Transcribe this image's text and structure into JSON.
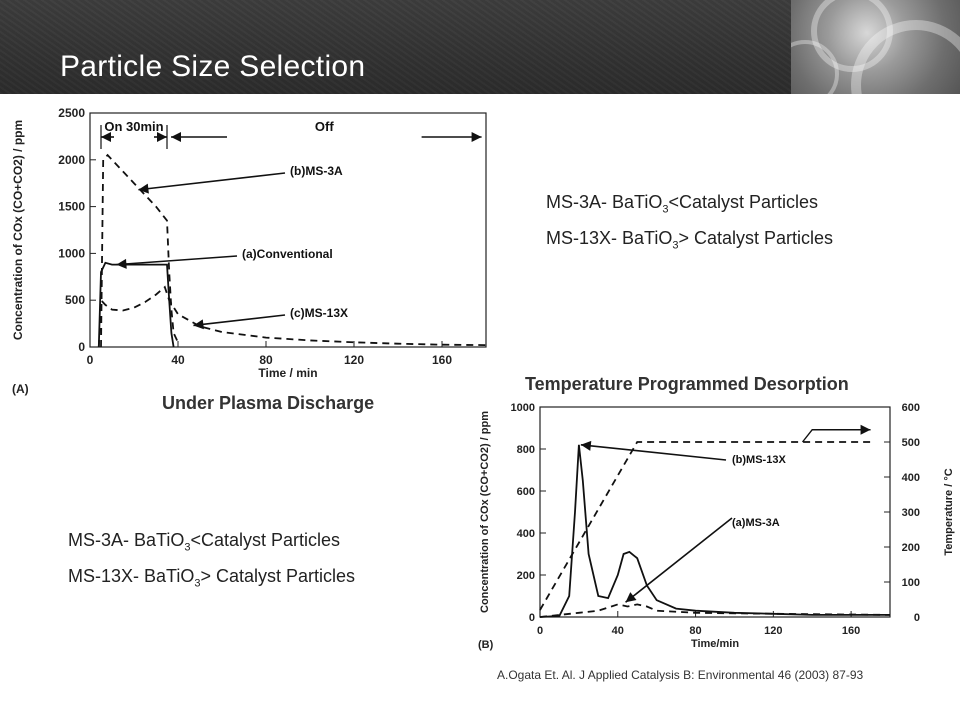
{
  "slide": {
    "title": "Particle Size Selection",
    "caption_left": "Under Plasma Discharge",
    "caption_right": "Temperature Programmed Desorption",
    "notes_top": [
      "MS-3A- BaTiO",
      "3",
      "<Catalyst Particles",
      "MS-13X- BaTiO",
      "3",
      "> Catalyst Particles"
    ],
    "notes_bottom": [
      "MS-3A- BaTiO",
      "3",
      "<Catalyst Particles",
      "MS-13X- BaTiO",
      "3",
      "> Catalyst Particles"
    ],
    "citation": "A.Ogata Et. Al. J Applied Catalysis B: Environmental 46 (2003) 87-93"
  },
  "chart_data": [
    {
      "type": "line",
      "panel_label": "(A)",
      "xlabel": "Time / min",
      "ylabel": "Concentration of COx (CO+CO2) / ppm",
      "xlim": [
        0,
        180
      ],
      "ylim": [
        0,
        2500
      ],
      "x_ticks": [
        "0",
        "40",
        "80",
        "120",
        "160"
      ],
      "y_ticks": [
        "0",
        "500",
        "1000",
        "1500",
        "2000",
        "2500"
      ],
      "annotations": [
        "On 30min",
        "Off",
        "(b)MS-3A",
        "(a)Conventional",
        "(c)MS-13X"
      ],
      "series": [
        {
          "name": "(b)MS-3A",
          "style": "dashed",
          "x": [
            5,
            6,
            8,
            12,
            20,
            30,
            35,
            36,
            37,
            38,
            40
          ],
          "y": [
            0,
            2000,
            2050,
            1950,
            1750,
            1500,
            1350,
            800,
            400,
            150,
            50
          ]
        },
        {
          "name": "(a)Conventional",
          "style": "solid",
          "x": [
            4,
            5,
            7,
            10,
            20,
            30,
            35,
            36,
            37,
            38
          ],
          "y": [
            0,
            800,
            900,
            880,
            880,
            880,
            880,
            500,
            150,
            0
          ]
        },
        {
          "name": "(c)MS-13X",
          "style": "dashed",
          "x": [
            4,
            5,
            7,
            10,
            15,
            20,
            25,
            30,
            34,
            36,
            40,
            50,
            60,
            80,
            100,
            120,
            140,
            160,
            180
          ],
          "y": [
            0,
            500,
            450,
            400,
            390,
            420,
            480,
            560,
            640,
            500,
            350,
            220,
            160,
            100,
            70,
            50,
            35,
            25,
            20
          ]
        }
      ]
    },
    {
      "type": "line",
      "panel_label": "(B)",
      "xlabel": "Time/min",
      "ylabel": "Concentration of COx (CO+CO2) / ppm",
      "y2label": "Temperature / °C",
      "xlim": [
        0,
        180
      ],
      "ylim": [
        0,
        1000
      ],
      "y2lim": [
        0,
        600
      ],
      "x_ticks": [
        "0",
        "40",
        "80",
        "120",
        "160"
      ],
      "y_ticks": [
        "0",
        "200",
        "400",
        "600",
        "800",
        "1000"
      ],
      "y2_ticks": [
        "0",
        "100",
        "200",
        "300",
        "400",
        "500",
        "600"
      ],
      "annotations": [
        "(b)MS-13X",
        "(a)MS-3A"
      ],
      "series": [
        {
          "name": "(b)MS-13X",
          "style": "solid",
          "x": [
            0,
            10,
            15,
            18,
            20,
            22,
            25,
            30,
            35,
            40,
            43,
            46,
            50,
            55,
            60,
            70,
            80,
            100,
            120,
            140,
            160,
            180
          ],
          "y": [
            0,
            5,
            100,
            500,
            820,
            650,
            300,
            100,
            90,
            200,
            300,
            310,
            280,
            150,
            80,
            40,
            30,
            20,
            15,
            10,
            10,
            10
          ]
        },
        {
          "name": "(a)MS-3A",
          "style": "dashed",
          "x": [
            0,
            20,
            30,
            40,
            45,
            50,
            55,
            60,
            80,
            120,
            180
          ],
          "y": [
            0,
            20,
            30,
            60,
            50,
            60,
            50,
            30,
            20,
            15,
            10
          ]
        },
        {
          "name": "Temperature",
          "axis": "right",
          "style": "dashed",
          "x": [
            0,
            50,
            170
          ],
          "y": [
            20,
            500,
            500
          ]
        }
      ]
    }
  ]
}
